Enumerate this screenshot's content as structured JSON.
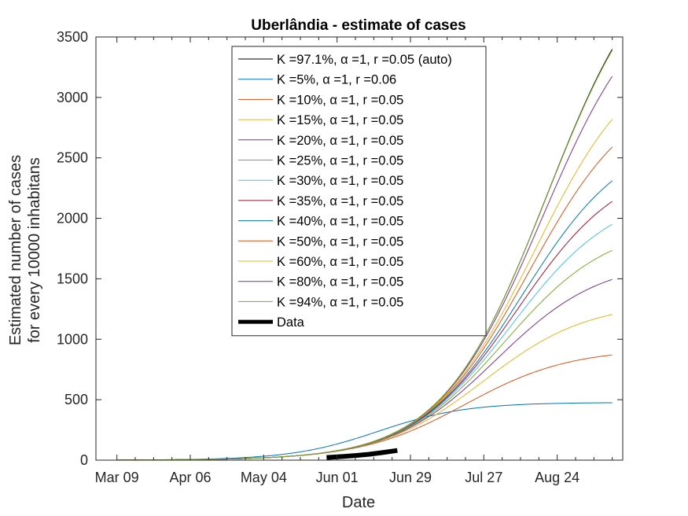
{
  "chart_data": {
    "type": "line",
    "title": "Uberlândia - estimate of cases",
    "xlabel": "Date",
    "ylabel_line1": "Estimated number of cases",
    "ylabel_line2": "for every 10000 inhabitans",
    "x_ticks": [
      "Mar 09",
      "Apr 06",
      "May 04",
      "Jun 01",
      "Jun 29",
      "Jul 27",
      "Aug 24"
    ],
    "xlim": [
      "2020-03-01",
      "2020-09-18"
    ],
    "x_end": "2020-09-14",
    "ylim": [
      0,
      3500
    ],
    "y_ticks": [
      0,
      500,
      1000,
      1500,
      2000,
      2500,
      3000,
      3500
    ],
    "grid": false,
    "legend_location": "top-center",
    "series": [
      {
        "name": "K =97.1%, α =1, r =0.05 (auto)",
        "color": "#000000",
        "end_value": 3400
      },
      {
        "name": "K =5%, α =1, r =0.06",
        "color": "#0072BD",
        "end_value": 475
      },
      {
        "name": "K =10%, α =1, r =0.05",
        "color": "#D95319",
        "end_value": 870
      },
      {
        "name": "K =15%, α =1, r =0.05",
        "color": "#EDB120",
        "end_value": 1205
      },
      {
        "name": "K =20%, α =1, r =0.05",
        "color": "#7E2F8E",
        "end_value": 1495
      },
      {
        "name": "K =25%, α =1, r =0.05",
        "color": "#77AC30",
        "end_value": 1735
      },
      {
        "name": "K =30%, α =1, r =0.05",
        "color": "#4DBEEE",
        "end_value": 1950
      },
      {
        "name": "K =35%, α =1, r =0.05",
        "color": "#A2142F",
        "end_value": 2140
      },
      {
        "name": "K =40%, α =1, r =0.05",
        "color": "#0072BD",
        "end_value": 2310
      },
      {
        "name": "K =50%, α =1, r =0.05",
        "color": "#D95319",
        "end_value": 2590
      },
      {
        "name": "K =60%, α =1, r =0.05",
        "color": "#EDB120",
        "end_value": 2820
      },
      {
        "name": "K =80%, α =1, r =0.05",
        "color": "#7E2F8E",
        "end_value": 3175
      },
      {
        "name": "K =94%, α =1, r =0.05",
        "color": "#77AC30",
        "end_value": 3390
      }
    ],
    "data_series": {
      "name": "Data",
      "color": "#000000",
      "points": [
        {
          "x": "2020-05-28",
          "y": 22
        },
        {
          "x": "2020-06-03",
          "y": 30
        },
        {
          "x": "2020-06-08",
          "y": 38
        },
        {
          "x": "2020-06-13",
          "y": 48
        },
        {
          "x": "2020-06-18",
          "y": 62
        },
        {
          "x": "2020-06-24",
          "y": 80
        }
      ]
    }
  }
}
